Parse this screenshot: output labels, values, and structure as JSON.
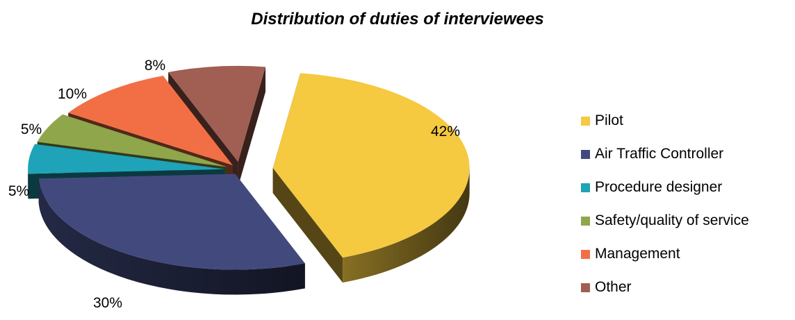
{
  "chart_data": {
    "type": "pie",
    "title": "Distribution of duties of interviewees",
    "legend_position": "right",
    "slices": [
      {
        "label": "Pilot",
        "value": 42,
        "value_label": "42%",
        "color": "#f5c940"
      },
      {
        "label": "Air Traffic Controller",
        "value": 30,
        "value_label": "30%",
        "color": "#424a7d"
      },
      {
        "label": "Procedure designer",
        "value": 5,
        "value_label": "5%",
        "color": "#1fa3b8"
      },
      {
        "label": "Safety/quality of service",
        "value": 5,
        "value_label": "5%",
        "color": "#8fa64a"
      },
      {
        "label": "Management",
        "value": 10,
        "value_label": "10%",
        "color": "#f26f45"
      },
      {
        "label": "Other",
        "value": 8,
        "value_label": "8%",
        "color": "#a05f52"
      }
    ]
  }
}
